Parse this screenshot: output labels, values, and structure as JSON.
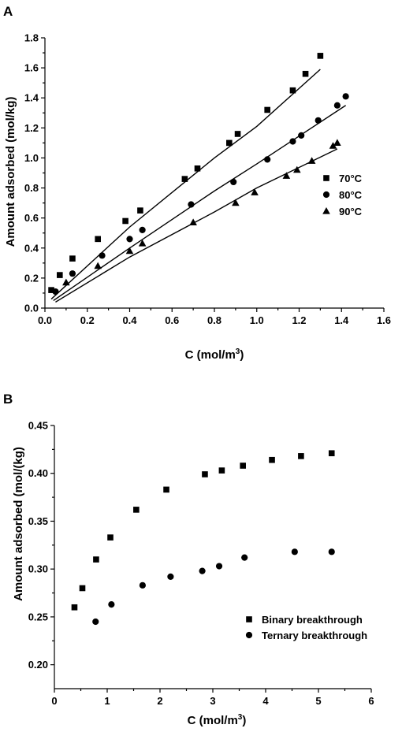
{
  "chart_data": [
    {
      "panel": "A",
      "type": "scatter",
      "xlabel": "C (mol/m",
      "xlabel_sup": "3",
      "xlabel_end": ")",
      "ylabel": "Amount adsorbed (mol/kg)",
      "xlim": [
        0,
        1.6
      ],
      "ylim": [
        0,
        1.8
      ],
      "xticks": [
        "0.0",
        "0.2",
        "0.4",
        "0.6",
        "0.8",
        "1.0",
        "1.2",
        "1.4",
        "1.6"
      ],
      "yticks": [
        "0.0",
        "0.2",
        "0.4",
        "0.6",
        "0.8",
        "1.0",
        "1.2",
        "1.4",
        "1.6",
        "1.8"
      ],
      "legend_position": "right",
      "series": [
        {
          "name": "70°C",
          "marker": "square",
          "x": [
            0.03,
            0.07,
            0.13,
            0.25,
            0.38,
            0.45,
            0.66,
            0.72,
            0.87,
            0.91,
            1.05,
            1.17,
            1.23,
            1.3
          ],
          "y": [
            0.12,
            0.22,
            0.33,
            0.46,
            0.58,
            0.65,
            0.86,
            0.93,
            1.1,
            1.16,
            1.32,
            1.45,
            1.56,
            1.68
          ],
          "fit": {
            "x": [
              0.03,
              0.4,
              0.8,
              1.0,
              1.3
            ],
            "y": [
              0.06,
              0.54,
              1.0,
              1.21,
              1.59
            ]
          }
        },
        {
          "name": "80°C",
          "marker": "circle",
          "x": [
            0.05,
            0.13,
            0.27,
            0.4,
            0.46,
            0.69,
            0.89,
            1.05,
            1.17,
            1.21,
            1.29,
            1.38,
            1.42
          ],
          "y": [
            0.11,
            0.23,
            0.35,
            0.46,
            0.52,
            0.69,
            0.84,
            0.99,
            1.11,
            1.15,
            1.25,
            1.35,
            1.41
          ],
          "fit": {
            "x": [
              0.04,
              0.4,
              0.8,
              1.0,
              1.42
            ],
            "y": [
              0.05,
              0.4,
              0.78,
              0.96,
              1.35
            ]
          }
        },
        {
          "name": "90°C",
          "marker": "triangle",
          "x": [
            0.1,
            0.25,
            0.4,
            0.46,
            0.7,
            0.9,
            0.99,
            1.14,
            1.19,
            1.26,
            1.36,
            1.38
          ],
          "y": [
            0.17,
            0.28,
            0.38,
            0.43,
            0.57,
            0.7,
            0.77,
            0.88,
            0.92,
            0.98,
            1.08,
            1.1
          ],
          "fit": {
            "x": [
              0.05,
              0.4,
              0.8,
              1.0,
              1.38
            ],
            "y": [
              0.04,
              0.34,
              0.64,
              0.8,
              1.06
            ]
          }
        }
      ]
    },
    {
      "panel": "B",
      "type": "scatter",
      "xlabel": "C (mol/m",
      "xlabel_sup": "3",
      "xlabel_end": ")",
      "ylabel": "Amount adsorbed (mol/(kg)",
      "xlim": [
        0,
        6
      ],
      "ylim": [
        0.175,
        0.45
      ],
      "xticks": [
        "0",
        "1",
        "2",
        "3",
        "4",
        "5",
        "6"
      ],
      "yticks": [
        "0.20",
        "0.25",
        "0.30",
        "0.35",
        "0.40",
        "0.45"
      ],
      "ytick_values": [
        0.2,
        0.25,
        0.3,
        0.35,
        0.4,
        0.45
      ],
      "legend_position": "bottom-right",
      "series": [
        {
          "name": "Binary breakthrough",
          "marker": "square",
          "x": [
            0.38,
            0.53,
            0.79,
            1.06,
            1.55,
            2.12,
            2.85,
            3.17,
            3.57,
            4.12,
            4.67,
            5.25
          ],
          "y": [
            0.26,
            0.28,
            0.31,
            0.333,
            0.362,
            0.383,
            0.399,
            0.403,
            0.408,
            0.414,
            0.418,
            0.421
          ]
        },
        {
          "name": "Ternary breakthrough",
          "marker": "circle",
          "x": [
            0.78,
            1.08,
            1.67,
            2.2,
            2.8,
            3.12,
            3.6,
            4.55,
            5.25
          ],
          "y": [
            0.245,
            0.263,
            0.283,
            0.292,
            0.298,
            0.303,
            0.312,
            0.318,
            0.318
          ]
        }
      ]
    }
  ]
}
